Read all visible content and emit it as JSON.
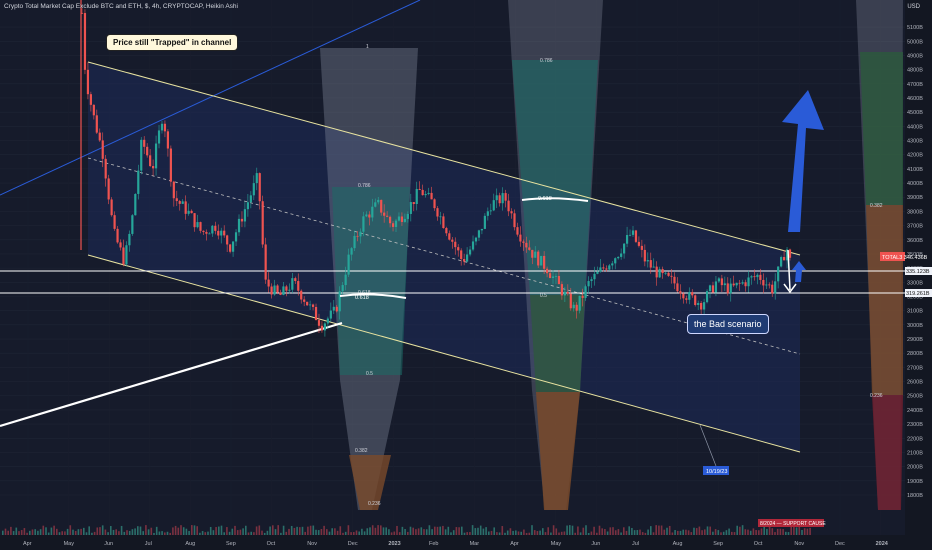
{
  "header": {
    "title": "Crypto Total Market Cap Exclude BTC and ETH, $, 4h, CRYPTOCAP, Heikin Ashi",
    "currency": "USD"
  },
  "annotations": {
    "callout": "Price still \"Trapped\" in channel",
    "scenario": "the Bad scenario",
    "price_tag_1": "TOTAL3 346.436B",
    "price_tag_2": "335.123B",
    "price_tag_3": "319.261B",
    "date_tag": "10/19/23",
    "bottom_info": "8/2024 — SUPPORT CAUSE"
  },
  "colors": {
    "background": "#131722",
    "channel_line": "#e8e3a0",
    "channel_fill": "#1d2a5a",
    "bull_candle": "#26a69a",
    "bear_candle": "#ef5350",
    "arrow_up": "#2a5bd7",
    "white_line": "#ffffff"
  },
  "chart_data": {
    "type": "candlestick",
    "title": "Crypto Total Market Cap Exclude BTC and ETH, $, 4h, CRYPTOCAP, Heikin Ashi",
    "xlabel": "",
    "ylabel": "USD",
    "x_ticks": [
      "Apr",
      "May",
      "Jun",
      "Jul",
      "Aug",
      "Sep",
      "Oct",
      "Nov",
      "Dec",
      "2023",
      "Feb",
      "Mar",
      "Apr",
      "May",
      "Jun",
      "Jul",
      "Aug",
      "Sep",
      "Oct",
      "Nov",
      "Dec",
      "2024"
    ],
    "y_ticks": [
      "5100B",
      "5000B",
      "4900B",
      "4800B",
      "4700B",
      "4600B",
      "4500B",
      "4400B",
      "4300B",
      "4200B",
      "4100B",
      "4000B",
      "3900B",
      "3800B",
      "3700B",
      "3600B",
      "3500B",
      "3400B",
      "3300B",
      "3200B",
      "3100B",
      "3000B",
      "2900B",
      "2800B",
      "2700B",
      "2600B",
      "2500B",
      "2400B",
      "2300B",
      "2200B",
      "2100B",
      "2000B",
      "1900B",
      "1800B"
    ],
    "ylim": [
      1800,
      5150
    ],
    "fib_labels": [
      "1",
      "0.786",
      "0.618",
      "0.5",
      "0.382",
      "0.236"
    ],
    "fib_labels_2": [
      "0.786",
      "0.5"
    ],
    "fib_labels_3": [
      "0.382",
      "0.236"
    ],
    "key_level_labels": [
      "0.618",
      "0.618"
    ],
    "price_path": [
      [
        0,
        5200
      ],
      [
        1,
        4750
      ],
      [
        3,
        4500
      ],
      [
        6,
        4200
      ],
      [
        9,
        3650
      ],
      [
        12,
        3450
      ],
      [
        14,
        3700
      ],
      [
        17,
        4300
      ],
      [
        20,
        4100
      ],
      [
        23,
        4500
      ],
      [
        26,
        3900
      ],
      [
        30,
        3800
      ],
      [
        34,
        3650
      ],
      [
        38,
        3700
      ],
      [
        42,
        3550
      ],
      [
        46,
        3800
      ],
      [
        50,
        4050
      ],
      [
        52,
        3300
      ],
      [
        56,
        3200
      ],
      [
        60,
        3300
      ],
      [
        64,
        3150
      ],
      [
        68,
        3000
      ],
      [
        72,
        3100
      ],
      [
        76,
        3500
      ],
      [
        80,
        3750
      ],
      [
        84,
        3850
      ],
      [
        88,
        3700
      ],
      [
        92,
        3800
      ],
      [
        96,
        3950
      ],
      [
        100,
        3850
      ],
      [
        104,
        3650
      ],
      [
        108,
        3450
      ],
      [
        112,
        3600
      ],
      [
        116,
        3850
      ],
      [
        120,
        3900
      ],
      [
        124,
        3650
      ],
      [
        128,
        3500
      ],
      [
        132,
        3400
      ],
      [
        136,
        3250
      ],
      [
        140,
        3100
      ],
      [
        144,
        3300
      ],
      [
        148,
        3400
      ],
      [
        152,
        3500
      ],
      [
        156,
        3650
      ],
      [
        160,
        3450
      ],
      [
        164,
        3350
      ],
      [
        168,
        3300
      ],
      [
        172,
        3200
      ],
      [
        176,
        3150
      ],
      [
        180,
        3300
      ],
      [
        184,
        3250
      ],
      [
        188,
        3300
      ],
      [
        192,
        3350
      ],
      [
        196,
        3250
      ],
      [
        200,
        3550
      ],
      [
        201,
        3450
      ]
    ]
  }
}
